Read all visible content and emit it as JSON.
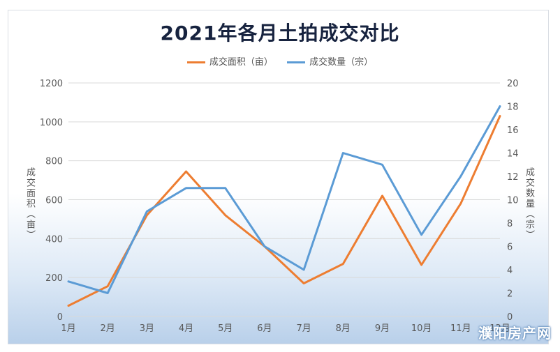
{
  "title": "2021年各月土拍成交对比",
  "watermark": "濮阳房产网",
  "chart_data": {
    "type": "line",
    "title": "2021年各月土拍成交对比",
    "categories": [
      "1月",
      "2月",
      "3月",
      "4月",
      "5月",
      "6月",
      "7月",
      "8月",
      "9月",
      "10月",
      "11月",
      "12月"
    ],
    "series": [
      {
        "name": "成交面积（亩）",
        "axis": "left",
        "color": "#ed7d31",
        "values": [
          55,
          155,
          520,
          745,
          520,
          360,
          170,
          270,
          620,
          265,
          580,
          1030
        ]
      },
      {
        "name": "成交数量（宗）",
        "axis": "right",
        "color": "#5b9bd5",
        "values": [
          3,
          2,
          9,
          11,
          11,
          6,
          4,
          14,
          13,
          7,
          12,
          18
        ]
      }
    ],
    "ylabel_left": "成交面积（亩）",
    "ylabel_right": "成交数量（宗）",
    "ylim_left": [
      0,
      1200
    ],
    "ylim_right": [
      0,
      20
    ],
    "yticks_left": [
      0,
      200,
      400,
      600,
      800,
      1000,
      1200
    ],
    "yticks_right": [
      0,
      2,
      4,
      6,
      8,
      10,
      12,
      14,
      16,
      18,
      20
    ],
    "grid": true,
    "legend_position": "top"
  }
}
